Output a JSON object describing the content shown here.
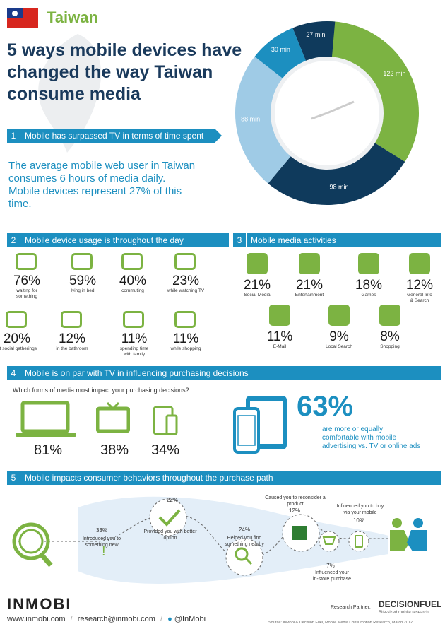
{
  "header": {
    "country": "Taiwan",
    "title_lines": [
      "5 ways mobile devices have",
      "changed the way Taiwan",
      "consume media"
    ]
  },
  "colors": {
    "accent": "#1c8fc0",
    "green": "#7cb342",
    "navy": "#0f3a5c",
    "light_blue": "#9fcbe6",
    "title": "#1a3a5c"
  },
  "clock_chart": {
    "segments": [
      {
        "label": "122 min",
        "value": 122,
        "color": "#7cb342",
        "icon": "laptop-icon"
      },
      {
        "label": "98 min",
        "value": 98,
        "color": "#0f3a5c",
        "icon": "phone-icon"
      },
      {
        "label": "88 min",
        "value": 88,
        "color": "#9fcbe6",
        "icon": "tv-icon"
      },
      {
        "label": "30 min",
        "value": 30,
        "color": "#1c8fc0",
        "icon": "radio-icon"
      },
      {
        "label": "27 min",
        "value": 27,
        "color": "#0f3a5c",
        "icon": "newspaper-icon"
      }
    ]
  },
  "section1": {
    "num": "1",
    "title": "Mobile has surpassed TV in terms of time spent",
    "text_lines": [
      "The average mobile web user in Taiwan",
      "consumes 6 hours of media daily.",
      "Mobile devices represent 27% of this",
      "time."
    ]
  },
  "section2": {
    "num": "2",
    "title": "Mobile device usage is throughout the day",
    "items": [
      {
        "pct": "76%",
        "label_lines": [
          "waiting for",
          "something"
        ],
        "icon": "alarm-clock-icon"
      },
      {
        "pct": "59%",
        "label_lines": [
          "lying in bed"
        ],
        "icon": "bed-icon"
      },
      {
        "pct": "40%",
        "label_lines": [
          "commuting"
        ],
        "icon": "train-icon"
      },
      {
        "pct": "23%",
        "label_lines": [
          "while watching TV"
        ],
        "icon": "tv-icon"
      },
      {
        "pct": "20%",
        "label_lines": [
          "at social gatherings"
        ],
        "icon": "people-icon"
      },
      {
        "pct": "12%",
        "label_lines": [
          "in the bathroom"
        ],
        "icon": "shower-icon"
      },
      {
        "pct": "11%",
        "label_lines": [
          "spending time",
          "with family"
        ],
        "icon": "family-icon"
      },
      {
        "pct": "11%",
        "label_lines": [
          "while shopping"
        ],
        "icon": "cart-icon"
      }
    ]
  },
  "section3": {
    "num": "3",
    "title": "Mobile media activities",
    "items": [
      {
        "pct": "21%",
        "label_lines": [
          "Social Media"
        ],
        "icon": "facebook-icon"
      },
      {
        "pct": "21%",
        "label_lines": [
          "Entertainment"
        ],
        "icon": "music-note-icon"
      },
      {
        "pct": "18%",
        "label_lines": [
          "Games"
        ],
        "icon": "dice-icon"
      },
      {
        "pct": "12%",
        "label_lines": [
          "General Info",
          "& Search"
        ],
        "icon": "info-search-icon"
      },
      {
        "pct": "11%",
        "label_lines": [
          "E-Mail"
        ],
        "icon": "envelope-icon"
      },
      {
        "pct": "9%",
        "label_lines": [
          "Local Search"
        ],
        "icon": "magnifier-icon"
      },
      {
        "pct": "8%",
        "label_lines": [
          "Shopping"
        ],
        "icon": "basket-icon"
      }
    ]
  },
  "section4": {
    "num": "4",
    "title": "Mobile is on par with TV in influencing purchasing decisions",
    "question": "Which forms of media most impact your purchasing decisions?",
    "devices": [
      {
        "pct": "81%",
        "icon": "laptop-icon"
      },
      {
        "pct": "38%",
        "icon": "tv-icon"
      },
      {
        "pct": "34%",
        "icon": "tablet-phone-icon"
      }
    ],
    "big_pct": "63%",
    "big_text_lines": [
      "are more or equally",
      "comfortable with mobile",
      "advertising vs. TV or online ads"
    ]
  },
  "section5": {
    "num": "5",
    "title": "Mobile impacts consumer behaviors throughout the purchase path",
    "steps": [
      {
        "pct": "33%",
        "label_lines": [
          "Introduced you to",
          "something new"
        ]
      },
      {
        "pct": "22%",
        "label_lines": [
          "Provided you with better",
          "option"
        ]
      },
      {
        "pct": "24%",
        "label_lines": [
          "Helped you find",
          "something nearby"
        ]
      },
      {
        "pct": "12%",
        "label_lines": [
          "Caused you to reconsider a",
          "product"
        ]
      },
      {
        "pct": "7%",
        "label_lines": [
          "Influenced your",
          "in-store purchase"
        ]
      },
      {
        "pct": "10%",
        "label_lines": [
          "Influenced you to buy",
          "via your mobile"
        ]
      }
    ]
  },
  "footer": {
    "brand": "INMOBI",
    "website": "www.inmobi.com",
    "email": "research@inmobi.com",
    "twitter": "@InMobi",
    "partner_label": "Research Partner:",
    "partner_name": "DECISIONFUEL",
    "partner_tagline": "Bite-sized mobile research.",
    "source": "Source: InMobi & Decision Fuel, Mobile Media Consumption Research, March 2012"
  }
}
